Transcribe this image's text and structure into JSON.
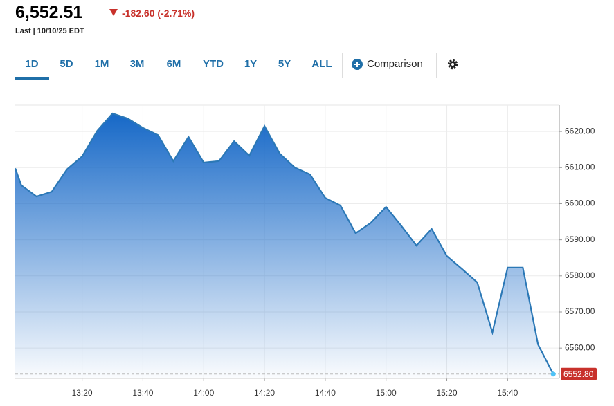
{
  "header": {
    "price": "6,552.51",
    "change": "-182.60 (-2.71%)",
    "last": "Last | 10/10/25 EDT"
  },
  "tabs": [
    "1D",
    "5D",
    "1M",
    "3M",
    "6M",
    "YTD",
    "1Y",
    "5Y",
    "ALL"
  ],
  "comparison": "Comparison",
  "chart_data": {
    "type": "area",
    "x": [
      778,
      780,
      785,
      790,
      795,
      800,
      805,
      810,
      815,
      820,
      825,
      830,
      835,
      840,
      845,
      850,
      855,
      860,
      865,
      870,
      875,
      880,
      885,
      890,
      895,
      900,
      905,
      910,
      915,
      920,
      925,
      930,
      935,
      940,
      945,
      950,
      955
    ],
    "values": [
      6609.8,
      6605.1,
      6602.0,
      6603.3,
      6609.5,
      6613.1,
      6620.2,
      6625.0,
      6623.6,
      6621.0,
      6619.0,
      6611.8,
      6618.5,
      6611.4,
      6611.8,
      6617.3,
      6613.3,
      6621.5,
      6613.9,
      6610.0,
      6608.1,
      6601.6,
      6599.5,
      6591.8,
      6594.7,
      6599.1,
      6593.9,
      6588.4,
      6593.0,
      6585.5,
      6581.9,
      6578.2,
      6564.3,
      6582.3,
      6582.3,
      6561.0,
      6552.8
    ],
    "color": "#2b78b6",
    "xlim": [
      778,
      957
    ],
    "xticks": [
      {
        "value": 800,
        "label": "13:20"
      },
      {
        "value": 820,
        "label": "13:40"
      },
      {
        "value": 840,
        "label": "14:00"
      },
      {
        "value": 860,
        "label": "14:20"
      },
      {
        "value": 880,
        "label": "14:40"
      },
      {
        "value": 900,
        "label": "15:00"
      },
      {
        "value": 920,
        "label": "15:20"
      },
      {
        "value": 940,
        "label": "15:40"
      }
    ],
    "ylim": [
      6551.6,
      6627.3
    ],
    "yticks": [
      {
        "value": 6560,
        "label": "6560.00"
      },
      {
        "value": 6570,
        "label": "6570.00"
      },
      {
        "value": 6580,
        "label": "6580.00"
      },
      {
        "value": 6590,
        "label": "6590.00"
      },
      {
        "value": 6600,
        "label": "6600.00"
      },
      {
        "value": 6610,
        "label": "6610.00"
      },
      {
        "value": 6620,
        "label": "6620.00"
      }
    ],
    "last_price": {
      "value": 6552.8,
      "label": "6552.80"
    },
    "grid": true
  }
}
